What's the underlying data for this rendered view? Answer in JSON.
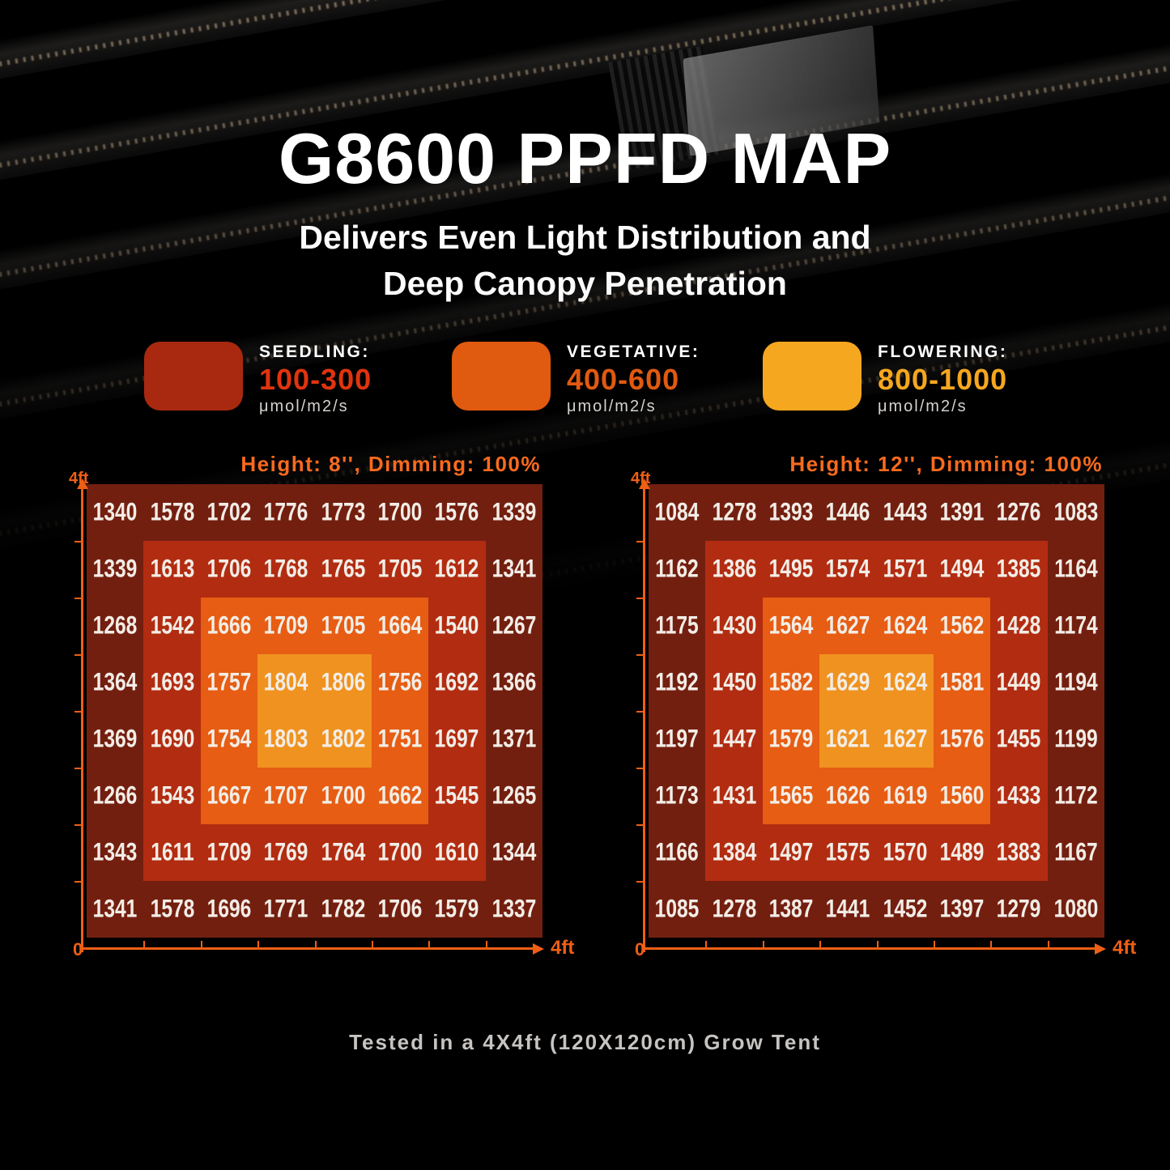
{
  "page": {
    "title": "G8600 PPFD MAP",
    "subtitle_line1": "Delivers Even Light Distribution and",
    "subtitle_line2": "Deep Canopy Penetration",
    "caption": "Tested in a 4X4ft (120X120cm) Grow Tent"
  },
  "legend": {
    "items": [
      {
        "label": "SEEDLING:",
        "range": "100-300",
        "unit": "μmol/m2/s",
        "swatch_color": "#A8290F",
        "range_color": "#E0340F"
      },
      {
        "label": "VEGETATIVE:",
        "range": "400-600",
        "unit": "μmol/m2/s",
        "swatch_color": "#E05A10",
        "range_color": "#E05A10"
      },
      {
        "label": "FLOWERING:",
        "range": "800-1000",
        "unit": "μmol/m2/s",
        "swatch_color": "#F5A71F",
        "range_color": "#F5A71F"
      }
    ]
  },
  "chart_data": [
    {
      "type": "heatmap",
      "title": "Height: 8'', Dimming: 100%",
      "grid_size": "8x8",
      "ylabel_top": "4ft",
      "xlabel_start": "0",
      "xlabel_end": "4ft",
      "values": [
        [
          1340,
          1578,
          1702,
          1776,
          1773,
          1700,
          1576,
          1339
        ],
        [
          1339,
          1613,
          1706,
          1768,
          1765,
          1705,
          1612,
          1341
        ],
        [
          1268,
          1542,
          1666,
          1709,
          1705,
          1664,
          1540,
          1267
        ],
        [
          1364,
          1693,
          1757,
          1804,
          1806,
          1756,
          1692,
          1366
        ],
        [
          1369,
          1690,
          1754,
          1803,
          1802,
          1751,
          1697,
          1371
        ],
        [
          1266,
          1543,
          1667,
          1707,
          1700,
          1662,
          1545,
          1265
        ],
        [
          1343,
          1611,
          1709,
          1769,
          1764,
          1700,
          1610,
          1344
        ],
        [
          1341,
          1578,
          1696,
          1771,
          1782,
          1706,
          1579,
          1337
        ]
      ],
      "zones": [
        {
          "name": "outer",
          "color": "#731F10"
        },
        {
          "name": "mid",
          "color": "#B22C11"
        },
        {
          "name": "inner",
          "color": "#E65D13"
        },
        {
          "name": "center",
          "color": "#F0921F"
        }
      ]
    },
    {
      "type": "heatmap",
      "title": "Height: 12'', Dimming: 100%",
      "grid_size": "8x8",
      "ylabel_top": "4ft",
      "xlabel_start": "0",
      "xlabel_end": "4ft",
      "values": [
        [
          1084,
          1278,
          1393,
          1446,
          1443,
          1391,
          1276,
          1083
        ],
        [
          1162,
          1386,
          1495,
          1574,
          1571,
          1494,
          1385,
          1164
        ],
        [
          1175,
          1430,
          1564,
          1627,
          1624,
          1562,
          1428,
          1174
        ],
        [
          1192,
          1450,
          1582,
          1629,
          1624,
          1581,
          1449,
          1194
        ],
        [
          1197,
          1447,
          1579,
          1621,
          1627,
          1576,
          1455,
          1199
        ],
        [
          1173,
          1431,
          1565,
          1626,
          1619,
          1560,
          1433,
          1172
        ],
        [
          1166,
          1384,
          1497,
          1575,
          1570,
          1489,
          1383,
          1167
        ],
        [
          1085,
          1278,
          1387,
          1441,
          1452,
          1397,
          1279,
          1080
        ]
      ],
      "zones": [
        {
          "name": "outer",
          "color": "#731F10"
        },
        {
          "name": "mid",
          "color": "#B22C11"
        },
        {
          "name": "inner",
          "color": "#E65D13"
        },
        {
          "name": "center",
          "color": "#F0921F"
        }
      ]
    }
  ],
  "colors": {
    "background": "#000000",
    "header_text": "#F96A1E",
    "axis": "#EE5F14",
    "value_text": "#F2EDE6"
  }
}
